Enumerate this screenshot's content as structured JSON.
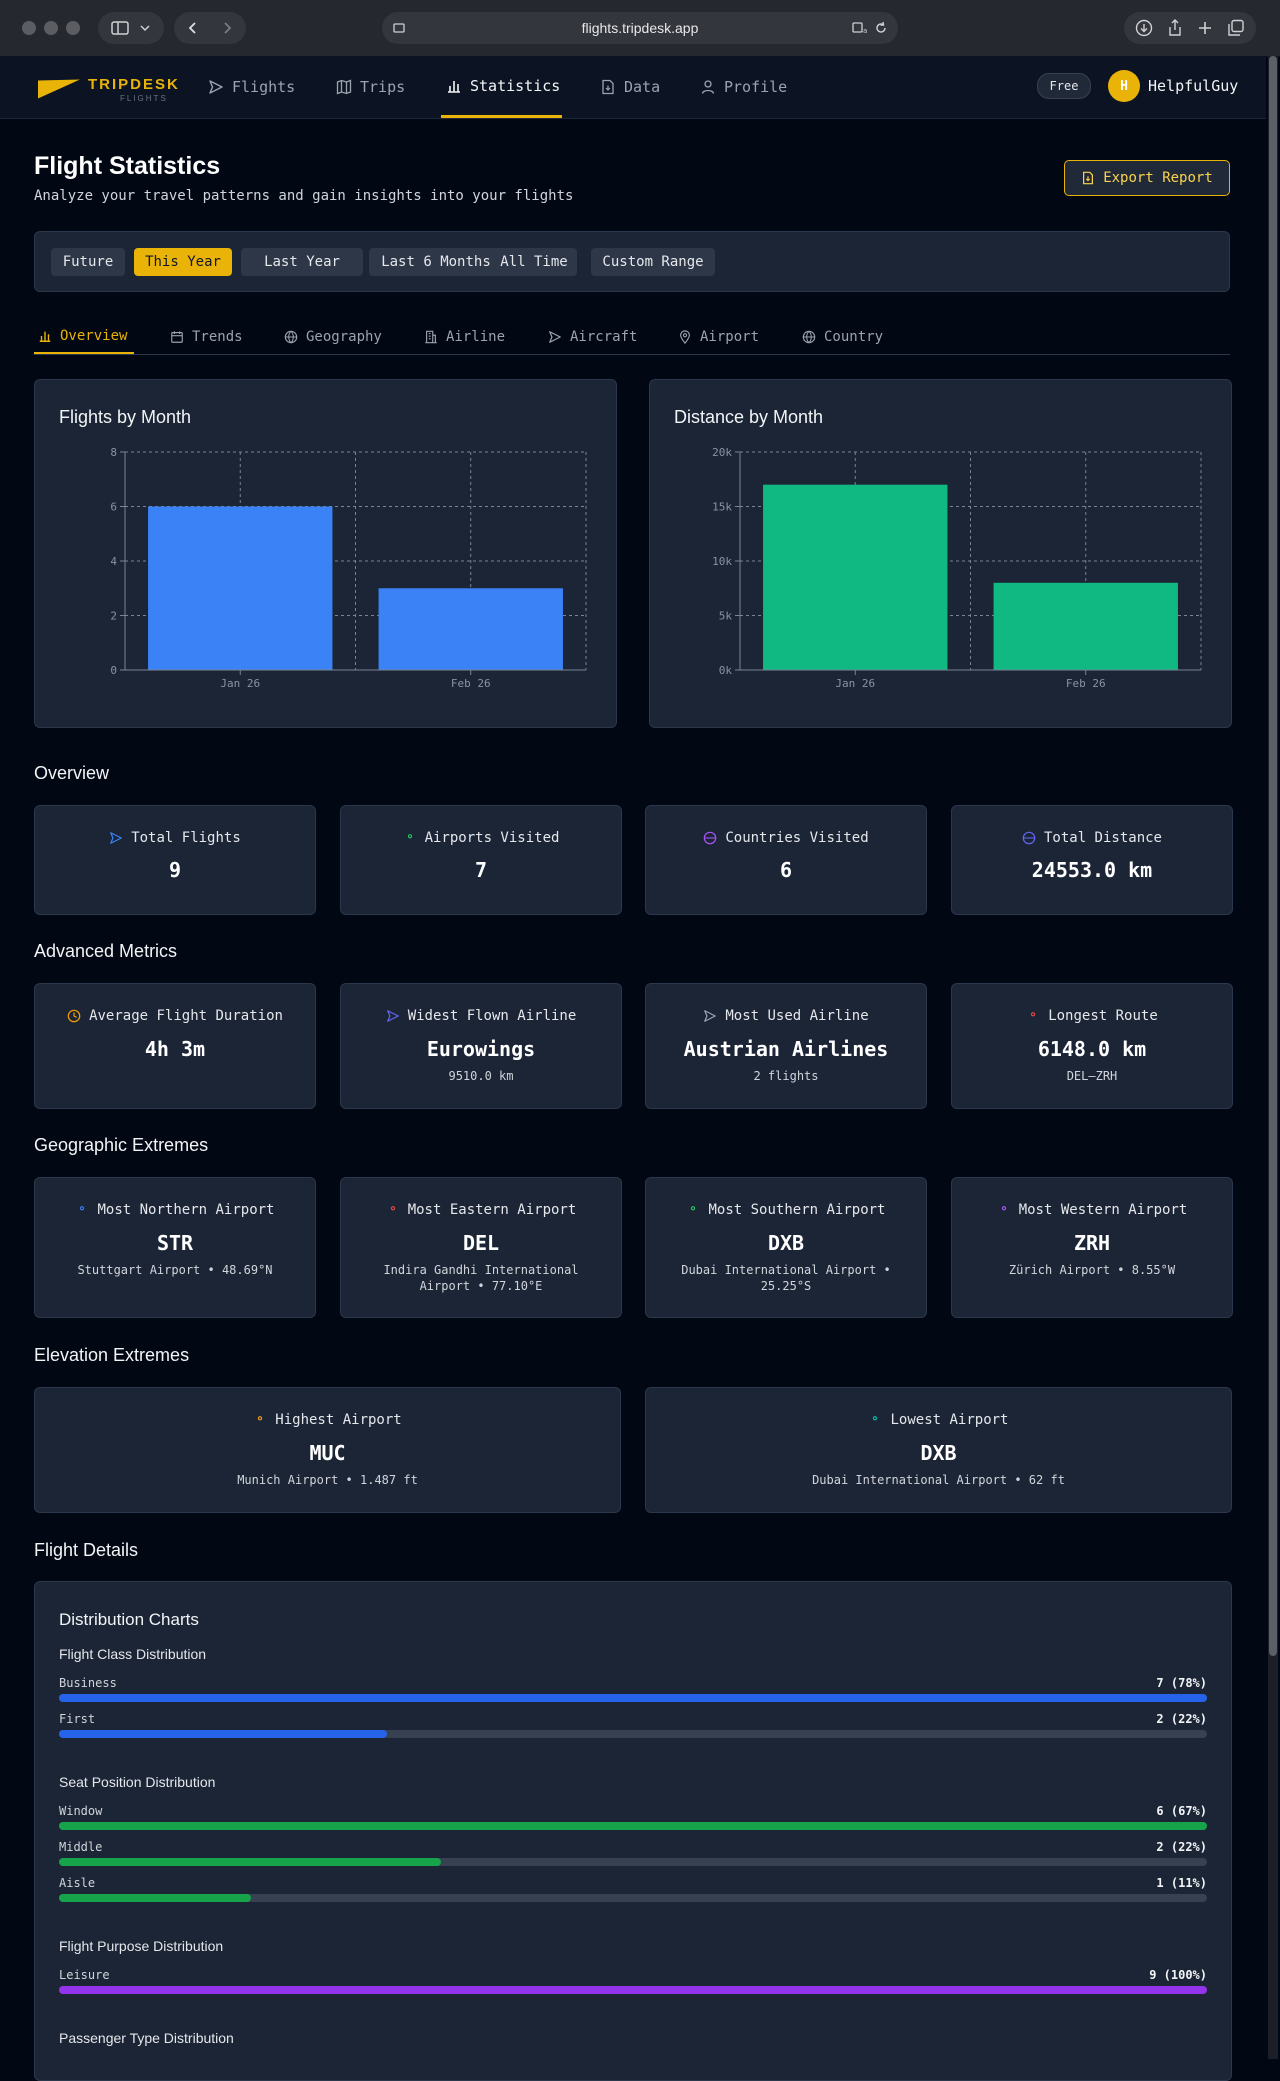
{
  "browser": {
    "url": "flights.tripdesk.app"
  },
  "nav": {
    "logo_text": "TRIPDESK",
    "logo_sub": "FLIGHTS",
    "items": [
      {
        "label": "Flights",
        "icon": "plane-icon"
      },
      {
        "label": "Trips",
        "icon": "map-icon"
      },
      {
        "label": "Statistics",
        "icon": "bar-chart-icon",
        "active": true
      },
      {
        "label": "Data",
        "icon": "file-icon"
      },
      {
        "label": "Profile",
        "icon": "user-icon"
      }
    ],
    "plan_badge": "Free",
    "avatar_initial": "H",
    "username": "HelpfulGuy"
  },
  "header": {
    "title": "Flight Statistics",
    "subtitle": "Analyze your travel patterns and gain insights into your flights",
    "export_label": "Export Report"
  },
  "filters": [
    "Future",
    "This Year",
    "Last Year",
    "Last 6 Months",
    "All Time",
    "Custom Range"
  ],
  "active_filter": "This Year",
  "tabs": [
    {
      "label": "Overview",
      "icon": "bar-chart-icon",
      "active": true
    },
    {
      "label": "Trends",
      "icon": "calendar-icon"
    },
    {
      "label": "Geography",
      "icon": "globe-icon"
    },
    {
      "label": "Airline",
      "icon": "building-icon"
    },
    {
      "label": "Aircraft",
      "icon": "plane-icon"
    },
    {
      "label": "Airport",
      "icon": "pin-icon"
    },
    {
      "label": "Country",
      "icon": "globe-icon"
    }
  ],
  "chart_data": [
    {
      "type": "bar",
      "title": "Flights by Month",
      "categories": [
        "Jan 26",
        "Feb 26"
      ],
      "values": [
        6,
        3
      ],
      "yticks": [
        "0",
        "2",
        "4",
        "6",
        "8"
      ],
      "ylim": [
        0,
        8
      ],
      "grid": true,
      "color": "#3b82f6"
    },
    {
      "type": "bar",
      "title": "Distance by Month",
      "categories": [
        "Jan 26",
        "Feb 26"
      ],
      "values": [
        17000,
        8000
      ],
      "yticks": [
        "0k",
        "5k",
        "10k",
        "15k",
        "20k"
      ],
      "ylim": [
        0,
        20000
      ],
      "grid": true,
      "color": "#10b981"
    }
  ],
  "overview": {
    "title": "Overview",
    "cards": [
      {
        "label": "Total Flights",
        "value": "9",
        "icon": "plane-icon",
        "icon_color": "#3b82f6"
      },
      {
        "label": "Airports Visited",
        "value": "7",
        "icon": "pin-icon",
        "icon_color": "#22c55e"
      },
      {
        "label": "Countries Visited",
        "value": "6",
        "icon": "globe-icon",
        "icon_color": "#a855f7"
      },
      {
        "label": "Total Distance",
        "value": "24553.0 km",
        "icon": "globe-icon",
        "icon_color": "#6366f1"
      }
    ]
  },
  "advanced": {
    "title": "Advanced Metrics",
    "cards": [
      {
        "label": "Average Flight Duration",
        "value": "4h 3m",
        "sub": "",
        "icon": "clock-icon",
        "icon_color": "#f59e0b"
      },
      {
        "label": "Widest Flown Airline",
        "value": "Eurowings",
        "sub": "9510.0 km",
        "icon": "plane-icon",
        "icon_color": "#6366f1"
      },
      {
        "label": "Most Used Airline",
        "value": "Austrian Airlines",
        "sub": "2 flights",
        "icon": "plane-icon",
        "icon_color": "#9ca3af"
      },
      {
        "label": "Longest Route",
        "value": "6148.0 km",
        "sub": "DEL–ZRH",
        "icon": "pin-icon",
        "icon_color": "#ef4444"
      }
    ]
  },
  "geo": {
    "title": "Geographic Extremes",
    "cards": [
      {
        "label": "Most Northern Airport",
        "value": "STR",
        "sub": "Stuttgart Airport • 48.69°N",
        "icon": "pin-icon",
        "icon_color": "#3b82f6"
      },
      {
        "label": "Most Eastern Airport",
        "value": "DEL",
        "sub": "Indira Gandhi International Airport • 77.10°E",
        "icon": "pin-icon",
        "icon_color": "#ef4444"
      },
      {
        "label": "Most Southern Airport",
        "value": "DXB",
        "sub": "Dubai International Airport • 25.25°S",
        "icon": "pin-icon",
        "icon_color": "#22c55e"
      },
      {
        "label": "Most Western Airport",
        "value": "ZRH",
        "sub": "Zürich Airport • 8.55°W",
        "icon": "pin-icon",
        "icon_color": "#a855f7"
      }
    ]
  },
  "elevation": {
    "title": "Elevation Extremes",
    "cards": [
      {
        "label": "Highest Airport",
        "value": "MUC",
        "sub": "Munich Airport • 1.487 ft",
        "icon": "pin-icon",
        "icon_color": "#f59e0b"
      },
      {
        "label": "Lowest Airport",
        "value": "DXB",
        "sub": "Dubai International Airport • 62 ft",
        "icon": "pin-icon",
        "icon_color": "#14b8a6"
      }
    ]
  },
  "details": {
    "title": "Flight Details",
    "panel_title": "Distribution Charts",
    "groups": [
      {
        "title": "Flight Class Distribution",
        "color": "#2563eb",
        "rows": [
          {
            "label": "Business",
            "value": "7 (78%)",
            "fraction": 1.0
          },
          {
            "label": "First",
            "value": "2 (22%)",
            "fraction": 0.286
          }
        ]
      },
      {
        "title": "Seat Position Distribution",
        "color": "#16a34a",
        "rows": [
          {
            "label": "Window",
            "value": "6 (67%)",
            "fraction": 1.0
          },
          {
            "label": "Middle",
            "value": "2 (22%)",
            "fraction": 0.333
          },
          {
            "label": "Aisle",
            "value": "1 (11%)",
            "fraction": 0.167
          }
        ]
      },
      {
        "title": "Flight Purpose Distribution",
        "color": "#9333ea",
        "rows": [
          {
            "label": "Leisure",
            "value": "9 (100%)",
            "fraction": 1.0
          }
        ]
      },
      {
        "title": "Passenger Type Distribution",
        "color": "#eab308",
        "rows": []
      }
    ]
  }
}
